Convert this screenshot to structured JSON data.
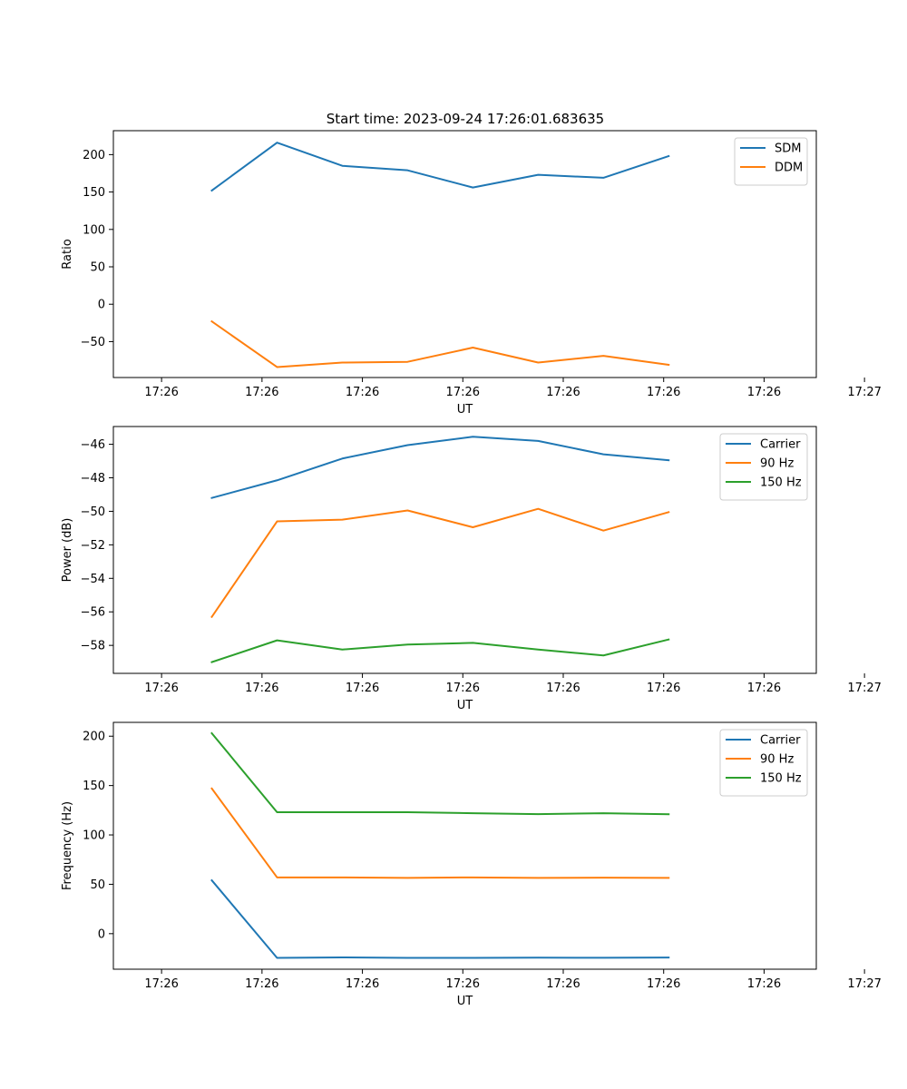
{
  "figure": {
    "title": "Start time: 2023-09-24 17:26:01.683635"
  },
  "chart_data": [
    {
      "type": "line",
      "xlabel": "UT",
      "ylabel": "Ratio",
      "x_tick_labels": [
        "17:26",
        "17:26",
        "17:26",
        "17:26",
        "17:26",
        "17:26",
        "17:26"
      ],
      "x_tick_labels_end": "17:27",
      "xlim": [
        -0.48,
        6.52
      ],
      "ylim": [
        -98,
        232
      ],
      "yticks": [
        -50,
        0,
        50,
        100,
        150,
        200
      ],
      "legend": "top-right",
      "x": [
        0.5,
        1.15,
        1.8,
        2.45,
        3.1,
        3.75,
        4.4,
        5.05
      ],
      "series": [
        {
          "name": "SDM",
          "color": "#1f77b4",
          "values": [
            152,
            216,
            185,
            179,
            156,
            173,
            169,
            198
          ]
        },
        {
          "name": "DDM",
          "color": "#ff7f0e",
          "values": [
            -23,
            -84,
            -78,
            -77,
            -58,
            -78,
            -69,
            -81
          ]
        }
      ]
    },
    {
      "type": "line",
      "xlabel": "UT",
      "ylabel": "Power (dB)",
      "x_tick_labels": [
        "17:26",
        "17:26",
        "17:26",
        "17:26",
        "17:26",
        "17:26",
        "17:26"
      ],
      "x_tick_labels_end": "17:27",
      "xlim": [
        -0.48,
        6.52
      ],
      "ylim": [
        -59.67,
        -44.94
      ],
      "yticks": [
        -58,
        -56,
        -54,
        -52,
        -50,
        -48,
        -46
      ],
      "legend": "top-right",
      "x": [
        0.5,
        1.15,
        1.8,
        2.45,
        3.1,
        3.75,
        4.4,
        5.05
      ],
      "series": [
        {
          "name": "Carrier",
          "color": "#1f77b4",
          "values": [
            -49.2,
            -48.15,
            -46.85,
            -46.05,
            -45.55,
            -45.8,
            -46.6,
            -46.95
          ]
        },
        {
          "name": "90 Hz",
          "color": "#ff7f0e",
          "values": [
            -56.3,
            -50.6,
            -50.5,
            -49.95,
            -50.95,
            -49.85,
            -51.15,
            -50.05
          ]
        },
        {
          "name": "150 Hz",
          "color": "#2ca02c",
          "values": [
            -59.0,
            -57.7,
            -58.25,
            -57.95,
            -57.85,
            -58.25,
            -58.6,
            -57.65
          ]
        }
      ]
    },
    {
      "type": "line",
      "xlabel": "UT",
      "ylabel": "Frequency (Hz)",
      "x_tick_labels": [
        "17:26",
        "17:26",
        "17:26",
        "17:26",
        "17:26",
        "17:26",
        "17:26"
      ],
      "x_tick_labels_end": "17:27",
      "xlim": [
        -0.48,
        6.52
      ],
      "ylim": [
        -36,
        214
      ],
      "yticks": [
        0,
        50,
        100,
        150,
        200
      ],
      "legend": "top-right",
      "x": [
        0.5,
        1.15,
        1.8,
        2.45,
        3.1,
        3.75,
        4.4,
        5.05
      ],
      "series": [
        {
          "name": "Carrier",
          "color": "#1f77b4",
          "values": [
            54,
            -24.5,
            -24,
            -24.5,
            -24.5,
            -24.3,
            -24.4,
            -24.2
          ]
        },
        {
          "name": "90 Hz",
          "color": "#ff7f0e",
          "values": [
            147,
            57,
            57,
            56.5,
            57,
            56.5,
            56.7,
            56.5
          ]
        },
        {
          "name": "150 Hz",
          "color": "#2ca02c",
          "values": [
            203,
            123,
            123,
            123,
            122,
            121,
            122,
            121
          ]
        }
      ]
    }
  ]
}
